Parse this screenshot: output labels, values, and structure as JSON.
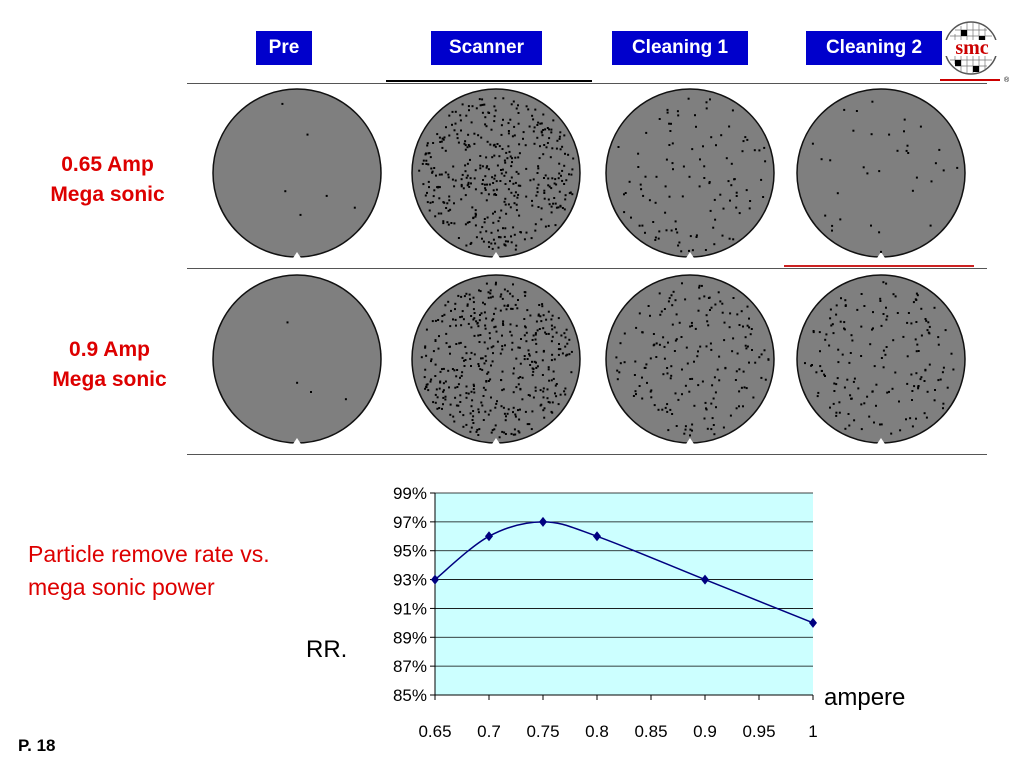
{
  "headers": [
    "Pre",
    "Scanner",
    "Cleaning 1",
    "Cleaning 2"
  ],
  "rows": [
    {
      "line1": "0.65 Amp",
      "line2": "Mega sonic"
    },
    {
      "line1": "0.9 Amp",
      "line2": "Mega sonic"
    }
  ],
  "logo": {
    "text": "smc"
  },
  "caption": {
    "line1": "Particle remove rate vs.",
    "line2": "mega sonic power"
  },
  "axis": {
    "ylabel": "RR.",
    "xlabel": "ampere"
  },
  "page": {
    "number": "P. 18"
  },
  "colors": {
    "header_bg": "#0000cc",
    "accent_red": "#dd0000",
    "plot_bg": "#ccffff",
    "series": "#000080"
  },
  "chart_data": {
    "type": "line",
    "x": [
      0.65,
      0.7,
      0.75,
      0.8,
      0.9,
      1
    ],
    "series": [
      {
        "values": [
          93,
          96,
          97,
          96,
          93,
          90
        ]
      }
    ],
    "xticks": [
      "0.65",
      "0.7",
      "0.75",
      "0.8",
      "0.85",
      "0.9",
      "0.95",
      "1"
    ],
    "yticks": [
      "85%",
      "87%",
      "89%",
      "91%",
      "93%",
      "95%",
      "97%",
      "99%"
    ],
    "xlim": [
      0.65,
      1
    ],
    "ylim": [
      85,
      99
    ],
    "xlabel": "ampere",
    "ylabel": "RR.",
    "grid": "horizontal",
    "legend": "none"
  }
}
